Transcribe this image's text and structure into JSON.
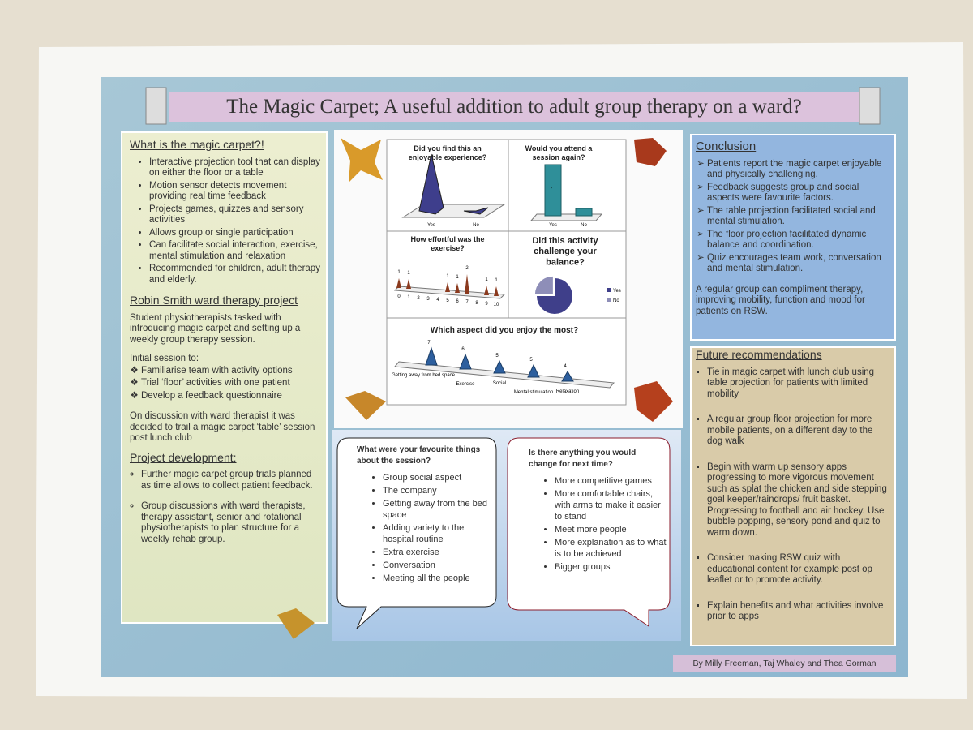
{
  "title": "The Magic Carpet; A useful addition to adult group therapy on a ward?",
  "left": {
    "what": {
      "heading": "What is the magic carpet?!",
      "items": [
        "Interactive projection tool that can display on either the floor or a table",
        "Motion sensor detects movement providing real time feedback",
        "Projects games, quizzes and sensory activities",
        "Allows group or single participation",
        "Can facilitate social interaction, exercise, mental stimulation and relaxation",
        "Recommended for children, adult therapy and elderly."
      ]
    },
    "project": {
      "heading": "Robin Smith ward therapy project",
      "intro": "Student physiotherapists tasked with introducing magic carpet and setting up a weekly group therapy session.",
      "initial": "Initial session to:",
      "items": [
        "Familiarise team with activity options",
        "Trial ‘floor’ activities with one patient",
        "Develop a feedback questionnaire"
      ],
      "discussion": "On discussion with ward therapist it was decided to trail a magic carpet ‘table’ session post lunch club"
    },
    "development": {
      "heading": "Project development:",
      "items": [
        "Further magic carpet group trials planned as time allows to collect patient feedback.",
        "Group discussions with ward therapists, therapy assistant, senior and rotational physiotherapists to plan structure for a weekly rehab group."
      ]
    }
  },
  "charts": [
    {
      "type": "pyramid",
      "title": "Did you find this an enjoyable experience?",
      "categories": [
        "Yes",
        "No"
      ],
      "values": [
        7,
        0
      ]
    },
    {
      "type": "cylinder",
      "title": "Would you attend a session again?",
      "categories": [
        "Yes",
        "No"
      ],
      "values": [
        7,
        1
      ],
      "value_labels": [
        "7",
        null
      ]
    },
    {
      "type": "spike",
      "title": "How effortful was the exercise?",
      "x": [
        0,
        1,
        2,
        3,
        4,
        5,
        6,
        7,
        8,
        9,
        10
      ],
      "values": [
        1,
        1,
        null,
        null,
        null,
        1,
        1,
        2,
        null,
        1,
        1
      ]
    },
    {
      "type": "pie",
      "title": "Did this activity challenge your balance?",
      "categories": [
        "Yes",
        "No"
      ],
      "values": [
        75,
        25
      ],
      "colors": [
        "#3f3f8a",
        "#8e8eb8"
      ]
    },
    {
      "type": "cone",
      "title": "Which aspect did you enjoy the most?",
      "categories": [
        "Getting away from bed space",
        "Exercise",
        "Social",
        "Mental stimulation",
        "Relaxation"
      ],
      "values": [
        7,
        6,
        5,
        5,
        4
      ]
    }
  ],
  "bubbles": [
    {
      "title": "What were your favourite things about the session?",
      "items": [
        "Group social aspect",
        "The company",
        "Getting away from the bed space",
        "Adding variety to the hospital routine",
        "Extra exercise",
        "Conversation",
        "Meeting all the people"
      ]
    },
    {
      "title": "Is there anything you would change for next time?",
      "items": [
        "More competitive games",
        "More comfortable chairs, with arms to make it easier to stand",
        "Meet more people",
        "More explanation as to what is to be achieved",
        "Bigger groups"
      ]
    }
  ],
  "conclusion": {
    "heading": "Conclusion",
    "items": [
      "Patients report the magic carpet enjoyable and physically challenging.",
      "Feedback suggests group and social aspects were favourite factors.",
      "The table projection facilitated social and mental stimulation.",
      "The floor projection facilitated dynamic balance and coordination.",
      "Quiz encourages team work, conversation and mental stimulation."
    ],
    "summary": "A regular group can compliment therapy, improving mobility, function and mood for patients on RSW."
  },
  "future": {
    "heading": "Future recommendations",
    "items": [
      "Tie in magic carpet with lunch club using table projection for patients with limited mobility",
      "A regular group floor projection for more mobile patients, on a different day to the dog walk",
      "Begin with warm up sensory apps progressing to more vigorous movement such as splat the chicken and side stepping goal keeper/raindrops/ fruit basket. Progressing to football and air hockey. Use bubble popping, sensory pond and quiz to warm down.",
      "Consider making RSW quiz with educational content for example post op leaflet or to promote activity.",
      "Explain benefits and what activities involve prior to apps"
    ]
  },
  "authors": "By Milly Freeman, Taj Whaley and Thea Gorman"
}
